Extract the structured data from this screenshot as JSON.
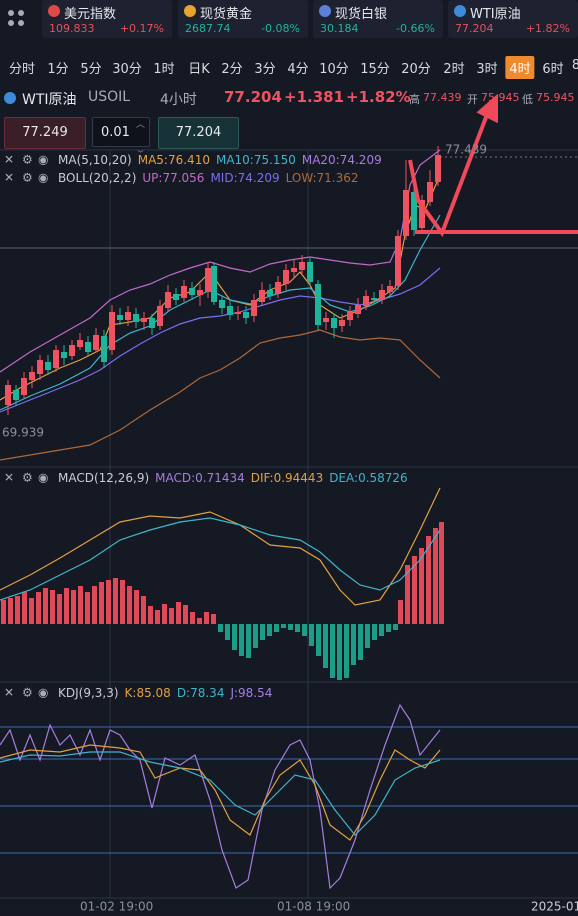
{
  "tickers": [
    {
      "name": "美元指数",
      "price": "109.833",
      "change": "+0.17%"
    },
    {
      "name": "现货黄金",
      "price": "2687.74",
      "change": "-0.08%"
    },
    {
      "name": "现货白银",
      "price": "30.184",
      "change": "-0.66%"
    },
    {
      "name": "WTI原油",
      "price": "77.204",
      "change": "+1.82%"
    }
  ],
  "timeframes": [
    "分时",
    "1分",
    "5分",
    "30分",
    "1时",
    "日K",
    "2分",
    "3分",
    "4分",
    "10分",
    "15分",
    "20分",
    "2时",
    "3时",
    "4时",
    "6时",
    "8"
  ],
  "active_timeframe": 14,
  "symbol": {
    "name": "WTI原油",
    "code": "USOIL",
    "period": "4小时",
    "price": "77.204",
    "change": "+1.381",
    "percent": "+1.82%",
    "high_label": "高",
    "high": "77.439",
    "open_label": "开",
    "open": "75.945",
    "low_label": "低",
    "low": "75.945"
  },
  "inputs": [
    "77.249",
    "0.01",
    "77.204"
  ],
  "main_indicators": [
    {
      "name": "MA(5,10,20)",
      "items": [
        "MA5:76.410",
        "MA10:75.150",
        "MA20:74.209"
      ]
    },
    {
      "name": "BOLL(20,2,2)",
      "items": [
        "UP:77.056",
        "MID:74.209",
        "LOW:71.362"
      ]
    }
  ],
  "chart_labels": {
    "high_marker": "77.439",
    "low_marker": "69.939"
  },
  "macd": {
    "name": "MACD(12,26,9)",
    "items": [
      "MACD:0.71434",
      "DIF:0.94443",
      "DEA:0.58726"
    ]
  },
  "kdj": {
    "name": "KDJ(9,3,3)",
    "items": [
      "K:85.08",
      "D:78.34",
      "J:98.54"
    ]
  },
  "x_labels": [
    "01-02 19:00",
    "01-08 19:00",
    "2025-01"
  ]
}
